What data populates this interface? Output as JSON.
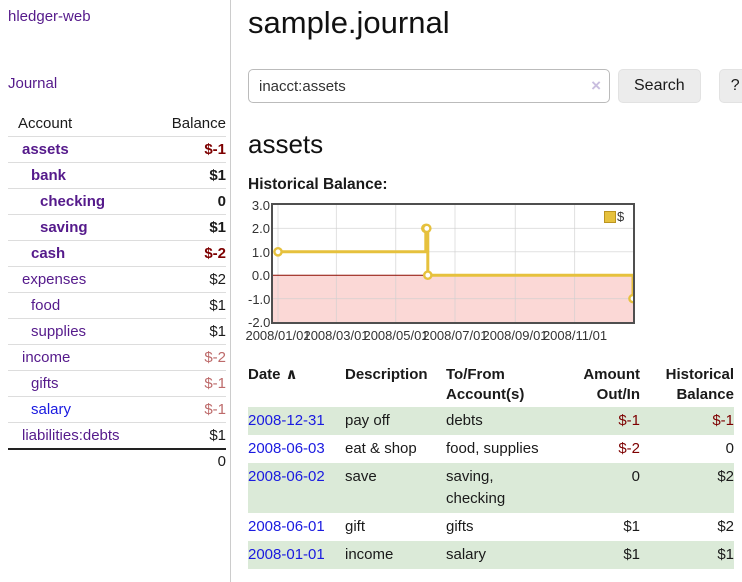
{
  "sidebar": {
    "brand": "hledger-web",
    "nav": [
      {
        "label": "Journal"
      }
    ],
    "accounts_table": {
      "headers": [
        "Account",
        "Balance"
      ],
      "rows": [
        {
          "name": "assets",
          "indent": 0,
          "balance": "$-1",
          "bold": true,
          "visited": true
        },
        {
          "name": "bank",
          "indent": 1,
          "balance": "$1",
          "bold": true,
          "visited": true
        },
        {
          "name": "checking",
          "indent": 2,
          "balance": "0",
          "bold": true,
          "visited": true
        },
        {
          "name": "saving",
          "indent": 2,
          "balance": "$1",
          "bold": true,
          "visited": true
        },
        {
          "name": "cash",
          "indent": 1,
          "balance": "$-2",
          "bold": true,
          "visited": true
        },
        {
          "name": "expenses",
          "indent": 0,
          "balance": "$2",
          "bold": false,
          "visited": true
        },
        {
          "name": "food",
          "indent": 1,
          "balance": "$1",
          "bold": false,
          "visited": true
        },
        {
          "name": "supplies",
          "indent": 1,
          "balance": "$1",
          "bold": false,
          "visited": true
        },
        {
          "name": "income",
          "indent": 0,
          "balance": "$-2",
          "bold": false,
          "visited": true
        },
        {
          "name": "gifts",
          "indent": 1,
          "balance": "$-1",
          "bold": false,
          "visited": true
        },
        {
          "name": "salary",
          "indent": 1,
          "balance": "$-1",
          "bold": false,
          "visited": false
        },
        {
          "name": "liabilities:debts",
          "indent": 0,
          "balance": "$1",
          "bold": false,
          "visited": true
        }
      ],
      "total": "0"
    }
  },
  "header": {
    "title": "sample.journal"
  },
  "search": {
    "value": "inacct:assets",
    "clear_icon": "×",
    "button_label": "Search",
    "help_label": "?"
  },
  "account_page": {
    "heading": "assets",
    "chart_heading": "Historical Balance:"
  },
  "chart_data": {
    "type": "line",
    "step": true,
    "title": "Historical Balance:",
    "series": [
      {
        "name": "$",
        "color": "#e6c13d",
        "points": [
          [
            "2008/01/01",
            1
          ],
          [
            "2008/06/01",
            2
          ],
          [
            "2008/06/02",
            2
          ],
          [
            "2008/06/03",
            0
          ],
          [
            "2008/12/31",
            -1
          ]
        ]
      }
    ],
    "x_ticks": [
      "2008/01/01",
      "2008/03/01",
      "2008/05/01",
      "2008/07/01",
      "2008/09/01",
      "2008/11/01"
    ],
    "y_ticks": [
      3.0,
      2.0,
      1.0,
      0.0,
      -1.0,
      -2.0
    ],
    "xlim": [
      "2008/01/01",
      "2008/12/31"
    ],
    "ylim": [
      -2,
      3
    ],
    "grid": true,
    "legend_position": "top-right",
    "negative_region_fill": "#fbd8d6",
    "zero_line_color": "#8c0a00"
  },
  "transactions": {
    "sort_icon": "∧",
    "columns": [
      {
        "l1": "Date",
        "l2": ""
      },
      {
        "l1": "Description",
        "l2": ""
      },
      {
        "l1": "To/From",
        "l2": "Account(s)"
      },
      {
        "l1": "Amount",
        "l2": "Out/In"
      },
      {
        "l1": "Historical",
        "l2": "Balance"
      }
    ],
    "rows": [
      {
        "date": "2008-12-31",
        "description": "pay off",
        "accounts": "debts",
        "amount": "$-1",
        "balance": "$-1"
      },
      {
        "date": "2008-06-03",
        "description": "eat & shop",
        "accounts": "food, supplies",
        "amount": "$-2",
        "balance": "0"
      },
      {
        "date": "2008-06-02",
        "description": "save",
        "accounts": "saving, checking",
        "amount": "0",
        "balance": "$2"
      },
      {
        "date": "2008-06-01",
        "description": "gift",
        "accounts": "gifts",
        "amount": "$1",
        "balance": "$2"
      },
      {
        "date": "2008-01-01",
        "description": "income",
        "accounts": "salary",
        "amount": "$1",
        "balance": "$1"
      }
    ]
  }
}
